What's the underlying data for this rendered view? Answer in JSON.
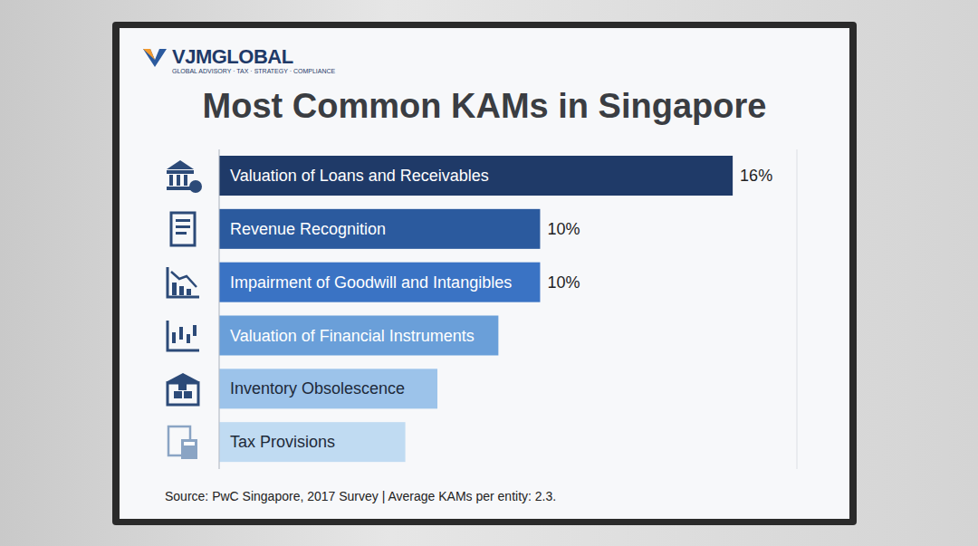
{
  "logo": {
    "text": "VJMGLOBAL",
    "tagline": "GLOBAL ADVISORY · TAX · STRATEGY · COMPLIANCE"
  },
  "chart_data": {
    "type": "bar",
    "orientation": "horizontal",
    "title": "Most Common KAMs in Singapore",
    "categories": [
      "Valuation of Loans and Receivables",
      "Revenue Recognition",
      "Impairment of Goodwill and Intangibles",
      "Valuation of Financial Instruments",
      "Inventory Obsolescence",
      "Tax Provisions"
    ],
    "values": [
      16,
      10,
      10,
      8.7,
      6.8,
      5.8
    ],
    "value_labels": [
      "16%",
      "10%",
      "10%",
      null,
      null,
      null
    ],
    "colors": [
      "#1f3a68",
      "#2b5a9e",
      "#3a73c4",
      "#6a9fd9",
      "#9cc3ea",
      "#c0dbf2"
    ],
    "xlim": [
      0,
      18
    ],
    "xticks": [
      0,
      3,
      6,
      9,
      12,
      15,
      18
    ],
    "grid": true,
    "tick_labels": false,
    "annotations": [
      "Source: PwC Singapore, 2017 Survey | Average KAMs per entity: 2.3."
    ]
  }
}
